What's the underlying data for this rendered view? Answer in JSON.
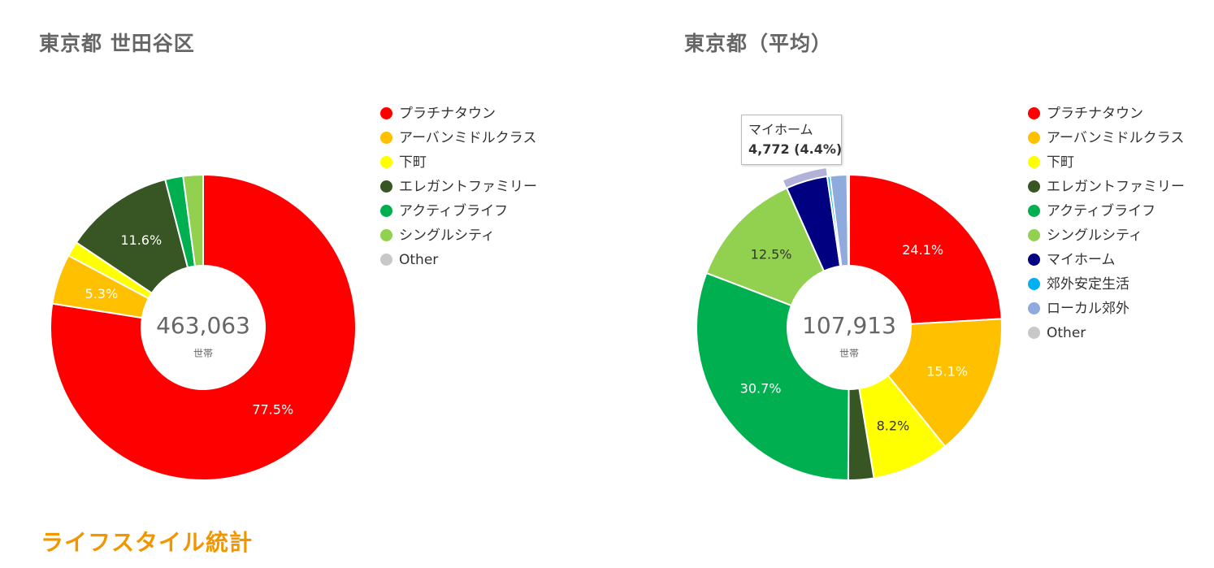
{
  "footer_title": "ライフスタイル統計",
  "chart_data": [
    {
      "type": "pie",
      "title": "東京都 世田谷区",
      "center_value": "463,063",
      "center_unit": "世帯",
      "colors": [
        "#ff0000",
        "#ffc000",
        "#ffff00",
        "#375623",
        "#00b050",
        "#92d050",
        "#c8c8c8"
      ],
      "categories": [
        "プラチナタウン",
        "アーバンミドルクラス",
        "下町",
        "エレガントファミリー",
        "アクティブライフ",
        "シングルシティ",
        "Other"
      ],
      "values": [
        77.5,
        5.3,
        1.6,
        11.6,
        1.9,
        2.1,
        0
      ],
      "data_labels": [
        "77.5%",
        "5.3%",
        "",
        "11.6%",
        "",
        "",
        ""
      ]
    },
    {
      "type": "pie",
      "title": "東京都（平均）",
      "center_value": "107,913",
      "center_unit": "世帯",
      "colors": [
        "#ff0000",
        "#ffc000",
        "#ffff00",
        "#375623",
        "#00b050",
        "#92d050",
        "#000080",
        "#00b0f0",
        "#8faadc",
        "#c8c8c8"
      ],
      "categories": [
        "プラチナタウン",
        "アーバンミドルクラス",
        "下町",
        "エレガントファミリー",
        "アクティブライフ",
        "シングルシティ",
        "マイホーム",
        "郊外安定生活",
        "ローカル郊外",
        "Other"
      ],
      "values": [
        24.1,
        15.1,
        8.2,
        2.7,
        30.7,
        12.5,
        4.4,
        0.3,
        1.8,
        0.2
      ],
      "data_labels": [
        "24.1%",
        "15.1%",
        "8.2%",
        "",
        "30.7%",
        "12.5%",
        "",
        "",
        "",
        ""
      ],
      "tooltip": {
        "name": "マイホーム",
        "value": "4,772 (4.4%)"
      }
    }
  ]
}
